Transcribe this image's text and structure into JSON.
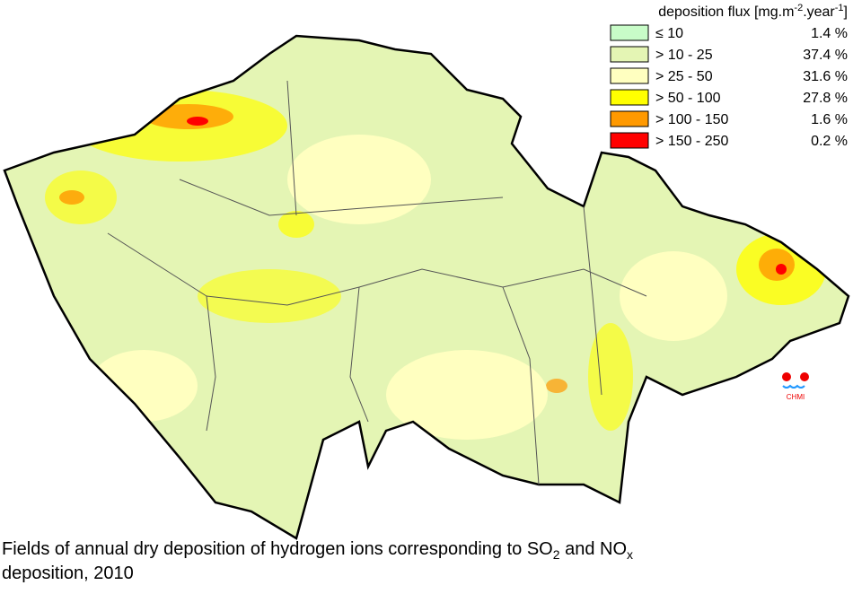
{
  "legend": {
    "title": "deposition flux [mg.m",
    "title_sup1": "-2",
    "title_mid": ".year",
    "title_sup2": "-1",
    "title_end": "]",
    "items": [
      {
        "label": "≤ 10",
        "share": "1.4 %",
        "color": "#c8fcc8"
      },
      {
        "label": "> 10 - 25",
        "share": "37.4 %",
        "color": "#e4f5b4"
      },
      {
        "label": "> 25 - 50",
        "share": "31.6 %",
        "color": "#ffffc0"
      },
      {
        "label": "> 50 - 100",
        "share": "27.8 %",
        "color": "#ffff00"
      },
      {
        "label": "> 100 - 150",
        "share": "1.6 %",
        "color": "#ff9900"
      },
      {
        "label": "> 150 - 250",
        "share": "0.2 %",
        "color": "#ff0000"
      }
    ]
  },
  "logo": {
    "text": "CHMI"
  },
  "caption": {
    "part1": "Fields of annual dry deposition of hydrogen ions corresponding to SO",
    "sub1": "2",
    "part2": " and NO",
    "sub2": "x",
    "line2": "deposition, 2010"
  }
}
